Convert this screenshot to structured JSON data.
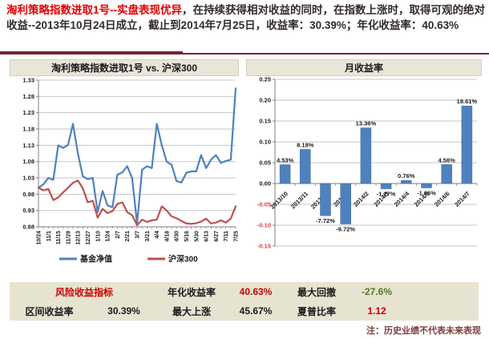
{
  "header": {
    "highlight": "淘利策略指数进取1号--实盘表现优异",
    "rest": "，在持续获得相对收益的同时，在指数上涨时，取得可观的绝对收益--2013年10月24日成立，截止到2014年7月25日，收益率：30.39%；年化收益率：40.63%",
    "highlight_color": "#e00000",
    "text_color": "#332b2b"
  },
  "colors": {
    "divider_maroon": "#7a2230",
    "panel_header_bg": "#e9e5d9",
    "table_bg": "#e7e3d1",
    "chart_blue": "#4f81bd",
    "chart_red": "#c0504d",
    "gridline": "#c6c6c6",
    "negative_tick_red": "#e03c3c",
    "value_red": "#cc0000",
    "value_green": "#55771f",
    "note_maroon": "#7d3b3b"
  },
  "chart_data": [
    {
      "type": "line",
      "title": "淘利策略指数进取1号 vs. 沪深300",
      "ylim": [
        0.88,
        1.33
      ],
      "y_ticks": [
        "1.33",
        "1.28",
        "1.23",
        "1.18",
        "1.13",
        "1.08",
        "1.03",
        "0.98",
        "0.93",
        "0.88"
      ],
      "x_labels": [
        "10/24",
        "11/1",
        "11/15",
        "11/29",
        "12/13",
        "12/27",
        "1/10",
        "1/24",
        "2/7",
        "2/21",
        "3/7",
        "3/21",
        "4/4",
        "4/18",
        "4/30",
        "5/16",
        "5/30",
        "6/13",
        "6/27",
        "7/11",
        "7/25"
      ],
      "x_label_every": 2,
      "legend_position": "bottom",
      "grid": true,
      "series": [
        {
          "name": "基金净值",
          "color": "#4f81bd",
          "values": [
            1.0,
            1.01,
            1.03,
            1.024,
            1.13,
            1.122,
            1.131,
            1.196,
            1.105,
            1.035,
            1.026,
            1.03,
            0.925,
            0.99,
            0.946,
            0.94,
            1.04,
            1.047,
            1.066,
            1.03,
            0.89,
            1.055,
            1.066,
            1.06,
            1.196,
            1.13,
            1.08,
            1.07,
            1.02,
            1.016,
            1.046,
            1.05,
            1.05,
            1.1,
            1.06,
            1.086,
            1.1,
            1.076,
            1.082,
            1.086,
            1.305
          ]
        },
        {
          "name": "沪深300",
          "color": "#c0504d",
          "values": [
            1.0,
            0.992,
            0.996,
            0.962,
            0.97,
            0.986,
            1.0,
            1.015,
            1.022,
            0.998,
            0.955,
            0.96,
            0.908,
            0.935,
            0.922,
            0.928,
            0.95,
            0.955,
            0.925,
            0.916,
            0.885,
            0.902,
            0.895,
            0.9,
            0.902,
            0.943,
            0.93,
            0.912,
            0.906,
            0.898,
            0.89,
            0.889,
            0.891,
            0.896,
            0.905,
            0.89,
            0.893,
            0.9,
            0.893,
            0.905,
            0.943
          ]
        }
      ]
    },
    {
      "type": "bar",
      "title": "月收益率",
      "ylim": [
        -0.15,
        0.25
      ],
      "y_ticks": [
        "0.25",
        "0.20",
        "0.15",
        "0.10",
        "0.05",
        "0.00",
        "-0.05",
        "-0.10",
        "-0.15"
      ],
      "categories": [
        "2013/10",
        "2013/11",
        "2013/12",
        "2014/1",
        "2014/2",
        "2014/3",
        "2014/4",
        "2014/5",
        "2014/6",
        "2014/7"
      ],
      "values": [
        0.0453,
        0.0818,
        -0.0772,
        -0.0972,
        0.1336,
        -0.0127,
        0.0076,
        -0.0105,
        0.0456,
        0.1861
      ],
      "data_labels": [
        "4.53%",
        "8.18%",
        "-7.72%",
        "-9.72%",
        "13.36%",
        "-1.27%",
        "0.76%",
        "-1.05%",
        "4.56%",
        "18.61%"
      ],
      "bar_color": "#4f81bd",
      "grid": true,
      "legend_position": "none"
    }
  ],
  "metrics_table": {
    "header_label": "风险收益指标",
    "annualized": {
      "label": "年化收益率",
      "value": "40.63%"
    },
    "max_drawdown": {
      "label": "最大回撤",
      "value": "-27.6%"
    },
    "interval_return": {
      "label": "区间收益率",
      "value": "30.39%"
    },
    "max_rise": {
      "label": "最大上涨",
      "value": "45.67%"
    },
    "sharpe": {
      "label": "夏普比率",
      "value": "1.12"
    }
  },
  "note": "注：历史业绩不代表未来表现"
}
